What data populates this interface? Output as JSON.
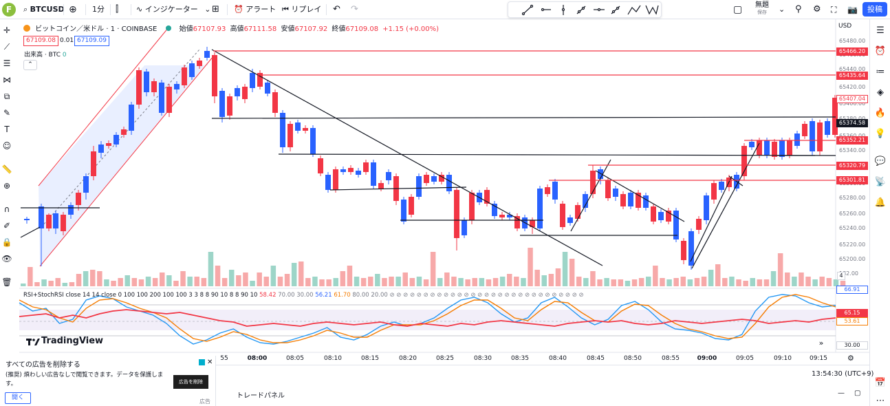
{
  "toolbar": {
    "logo": "F",
    "symbol": "BTCUSD",
    "interval": "1分",
    "indicators": "インジケーター",
    "alert": "アラート",
    "replay": "リプレイ",
    "layout_name": "無題",
    "layout_status": "保存",
    "post": "投稿",
    "icons": [
      "search-icon",
      "add-icon",
      "candles-icon",
      "indicators-icon",
      "layout-icon",
      "alert-icon",
      "replay-icon",
      "undo-icon",
      "redo-icon",
      "trendline-icon",
      "ray-icon",
      "vertical-line-icon",
      "extended-line-icon",
      "horizontal-ray-icon",
      "pencil-icon",
      "angle-icon",
      "pattern-icon",
      "square-icon",
      "magnifier-icon",
      "settings-icon",
      "fullscreen-icon",
      "camera-icon"
    ]
  },
  "legend": {
    "title": "ビットコイン／米ドル · 1 · COINBASE",
    "open_label": "始値",
    "open": "67107.93",
    "high_label": "高値",
    "high": "67111.58",
    "low_label": "安値",
    "low": "67107.92",
    "close_label": "終値",
    "close": "67109.08",
    "change": "+1.15 (+0.00%)",
    "bid": "67109.08",
    "spread": "0.01",
    "ask": "67109.09",
    "volume_label": "出来高 · BTC",
    "volume_value": "0"
  },
  "price_axis": {
    "currency": "USD",
    "ticks": [
      "65480.00",
      "65460.00",
      "65440.00",
      "65420.00",
      "65400.00",
      "65380.00",
      "65360.00",
      "65340.00",
      "65320.00",
      "65300.00",
      "65280.00",
      "65260.00",
      "65240.00",
      "65220.00",
      "65200.00",
      "182.00"
    ],
    "labels": {
      "l1": "65466.20",
      "l2": "65435.64",
      "l3": "65407.04",
      "l4": "65374.58",
      "l5": "65352.21",
      "l6": "65320.79",
      "l7": "65301.81",
      "vol": "4"
    }
  },
  "rsi": {
    "legend_name": "RSI+StochRSI",
    "legend_params": "close 14 14 close 0 100 100 200 100 100 3 3 8 8 90 10 8 8 90 10",
    "v1": "58.42",
    "v2": "70.00",
    "v3": "30.00",
    "v4": "56.21",
    "v5": "61.70",
    "v6": "80.00",
    "v7": "20.00",
    "axis_top": "66.91",
    "axis_red": "65.15",
    "axis_orange": "53.61",
    "axis_bottom": "30.00"
  },
  "time_axis": [
    "55",
    "08:00",
    "08:05",
    "08:10",
    "08:15",
    "08:20",
    "08:25",
    "08:30",
    "08:35",
    "08:40",
    "08:45",
    "08:50",
    "08:55",
    "09:00",
    "09:05",
    "09:10",
    "09:15"
  ],
  "brand": "TradingView",
  "status": {
    "clock": "13:54:30 (UTC+9)",
    "trade_panel": "トレードパネル"
  },
  "ad": {
    "title": "すべての広告を削除する",
    "text": "(推奨) 煩わしい広告なしで閲覧できます。データを保護します。",
    "remove_btn": "広告を削除",
    "open_btn": "開く",
    "tag": "広告"
  },
  "colors": {
    "bull": "#f23645",
    "bear": "#2962ff",
    "bull_vol": "#f7a9a9",
    "bear_vol": "#9dd5c8",
    "accent": "#2962ff"
  }
}
